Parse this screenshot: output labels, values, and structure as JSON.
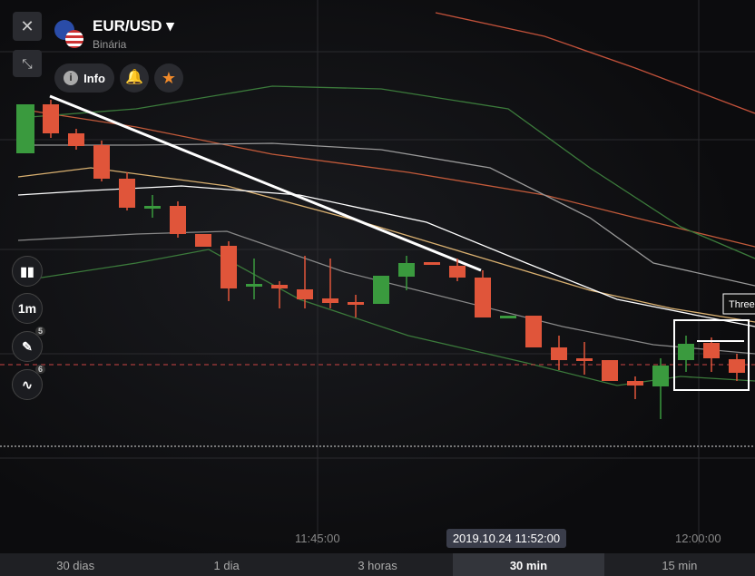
{
  "header": {
    "symbol": "EUR/USD",
    "subtitle": "Binária",
    "info": "Info"
  },
  "toolbar": {
    "timeframe": "1m",
    "drawing_count": "5",
    "indicator_count": "6"
  },
  "chart": {
    "pattern_label": "Three",
    "time_labels": [
      "11:45:00",
      "12:00:00"
    ],
    "cursor_time": "2019.10.24 11:52:00"
  },
  "tabs": [
    "30 dias",
    "1 dia",
    "3 horas",
    "30 min",
    "15 min"
  ],
  "active_tab": "30 min"
}
